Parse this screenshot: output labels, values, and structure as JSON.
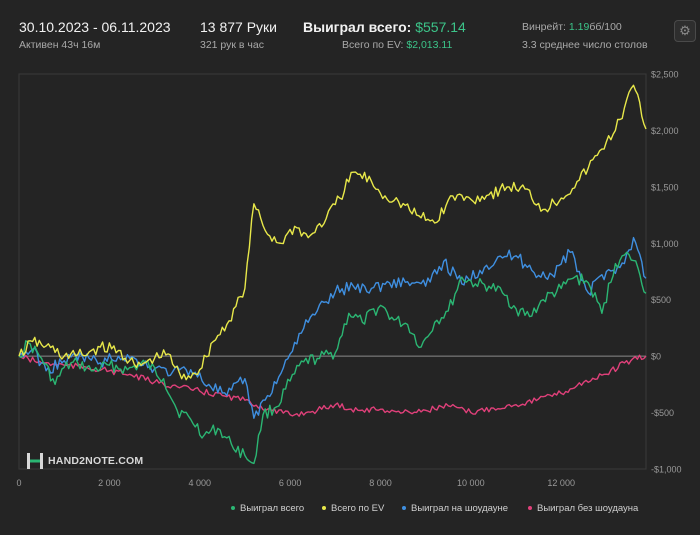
{
  "header": {
    "date_range": "30.10.2023 - 06.11.2023",
    "active": "Активен 43ч 16м",
    "hands": "13 877 Руки",
    "hands_per_hour": "321 рук в час",
    "won_total_label": "Выиграл всего:",
    "won_total_value": "$557.14",
    "ev_label": "Всего по EV:",
    "ev_value": "$2,013.11",
    "winrate_label": "Винрейт:",
    "winrate_value_green": "1.19",
    "winrate_value_rest": "бб/100",
    "tables": "3.3 среднее число столов",
    "settings_icon": "gear-icon"
  },
  "logo": {
    "text": "HAND2NOTE.COM"
  },
  "colors": {
    "background": "#242424",
    "green": "#2bb673",
    "yellow": "#e8e84a",
    "blue": "#3f8fe0",
    "red": "#e0407a",
    "zero_line": "#8a8a8a"
  },
  "chart_data": {
    "type": "line",
    "xlabel": "",
    "ylabel": "",
    "xlim": [
      0,
      13877
    ],
    "ylim": [
      -1000,
      2500
    ],
    "x_ticks": [
      0,
      2000,
      4000,
      6000,
      8000,
      10000,
      12000
    ],
    "x_tick_labels": [
      "0",
      "2 000",
      "4 000",
      "6 000",
      "8 000",
      "10 000",
      "12 000"
    ],
    "y_ticks": [
      2500,
      2000,
      1500,
      1000,
      500,
      0,
      -500,
      -1000
    ],
    "y_tick_labels": [
      "$2,500",
      "$2,000",
      "$1,500",
      "$1,000",
      "$500",
      "$0",
      "-$500",
      "-$1,000"
    ],
    "grid": false,
    "legend_position": "bottom",
    "series": [
      {
        "name": "Выиграл всего",
        "color": "#2bb673",
        "x": [
          0,
          200,
          500,
          800,
          1000,
          1300,
          1600,
          2000,
          2400,
          2800,
          3200,
          3500,
          3800,
          4100,
          4400,
          4700,
          5000,
          5200,
          5400,
          5700,
          6000,
          6300,
          6600,
          7000,
          7300,
          7600,
          8000,
          8300,
          8600,
          8900,
          9200,
          9500,
          9800,
          10100,
          10400,
          10700,
          11000,
          11300,
          11600,
          12000,
          12300,
          12600,
          12900,
          13200,
          13500,
          13700,
          13877
        ],
        "y": [
          0,
          120,
          -20,
          -250,
          -100,
          -60,
          -130,
          -80,
          -120,
          -60,
          -200,
          -480,
          -560,
          -700,
          -640,
          -780,
          -880,
          -950,
          -520,
          -450,
          -220,
          -50,
          -20,
          30,
          380,
          300,
          450,
          320,
          280,
          80,
          300,
          400,
          700,
          640,
          620,
          560,
          420,
          350,
          500,
          600,
          700,
          650,
          380,
          820,
          900,
          780,
          557
        ]
      },
      {
        "name": "Всего по EV",
        "color": "#e8e84a",
        "x": [
          0,
          300,
          600,
          1000,
          1400,
          1800,
          2200,
          2600,
          3000,
          3300,
          3600,
          4000,
          4300,
          4600,
          5000,
          5200,
          5500,
          5800,
          6100,
          6400,
          6800,
          7100,
          7400,
          7800,
          8000,
          8400,
          8800,
          9200,
          9600,
          10000,
          10400,
          10800,
          11200,
          11600,
          12000,
          12400,
          12800,
          13000,
          13200,
          13400,
          13600,
          13877
        ],
        "y": [
          0,
          130,
          90,
          0,
          10,
          80,
          50,
          -100,
          -20,
          20,
          -200,
          -120,
          130,
          280,
          600,
          1350,
          1080,
          1000,
          1150,
          1050,
          1220,
          1400,
          1630,
          1550,
          1440,
          1370,
          1250,
          1180,
          1420,
          1390,
          1430,
          1500,
          1480,
          1300,
          1400,
          1560,
          1780,
          1900,
          2000,
          2200,
          2400,
          2013
        ]
      },
      {
        "name": "Выиграл на шоудауне",
        "color": "#3f8fe0",
        "x": [
          0,
          300,
          600,
          1000,
          1400,
          1800,
          2200,
          2600,
          3000,
          3400,
          3800,
          4200,
          4600,
          5000,
          5200,
          5500,
          5800,
          6200,
          6600,
          7000,
          7400,
          7800,
          8200,
          8600,
          9000,
          9400,
          9800,
          10200,
          10600,
          11000,
          11400,
          11800,
          12200,
          12600,
          13000,
          13400,
          13600,
          13877
        ],
        "y": [
          0,
          60,
          -130,
          -40,
          0,
          -60,
          0,
          -30,
          -110,
          -140,
          -120,
          -250,
          -350,
          -200,
          -550,
          -350,
          -150,
          200,
          400,
          570,
          620,
          600,
          650,
          660,
          620,
          840,
          640,
          760,
          880,
          890,
          740,
          720,
          920,
          560,
          750,
          820,
          1050,
          690
        ]
      },
      {
        "name": "Выиграл без шоудауна",
        "color": "#e0407a",
        "x": [
          0,
          500,
          1000,
          1500,
          2000,
          2500,
          3000,
          3500,
          4000,
          4500,
          5000,
          5500,
          6000,
          6500,
          7000,
          7500,
          8000,
          8500,
          9000,
          9500,
          10000,
          10500,
          11000,
          11500,
          12000,
          12500,
          13000,
          13400,
          13877
        ],
        "y": [
          0,
          -60,
          -80,
          -100,
          -130,
          -170,
          -230,
          -270,
          -310,
          -350,
          -390,
          -470,
          -520,
          -490,
          -430,
          -480,
          -470,
          -500,
          -480,
          -440,
          -500,
          -460,
          -430,
          -380,
          -330,
          -230,
          -160,
          -60,
          0
        ]
      }
    ]
  }
}
